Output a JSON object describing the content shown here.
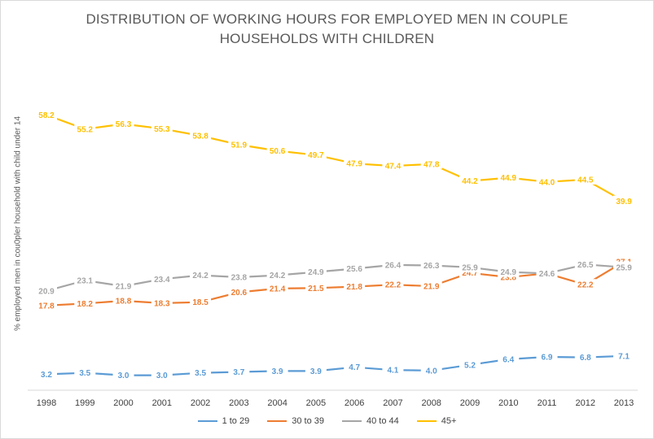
{
  "title": {
    "line1": "DISTRIBUTION OF WORKING HOURS FOR EMPLOYED MEN IN COUPLE",
    "line2": "HOUSEHOLDS WITH CHILDREN"
  },
  "chart_data": {
    "type": "line",
    "title": "DISTRIBUTION OF WORKING HOURS FOR EMPLOYED MEN IN COUPLE HOUSEHOLDS WITH CHILDREN",
    "xlabel": "",
    "ylabel": "% employed men in cou0pler household with child under 14",
    "ylim": [
      0,
      65
    ],
    "grid": false,
    "legend_position": "bottom",
    "categories": [
      "1998",
      "1999",
      "2000",
      "2001",
      "2002",
      "2003",
      "2004",
      "2005",
      "2006",
      "2007",
      "2008",
      "2009",
      "2010",
      "2011",
      "2012",
      "2013"
    ],
    "series": [
      {
        "name": "1 to 29",
        "color": "#5b9bd5",
        "values": [
          3.2,
          3.5,
          3.0,
          3.0,
          3.5,
          3.7,
          3.9,
          3.9,
          4.7,
          4.1,
          4.0,
          5.2,
          6.4,
          6.9,
          6.8,
          7.1
        ]
      },
      {
        "name": "30 to 39",
        "color": "#ed7d31",
        "values": [
          17.8,
          18.2,
          18.8,
          18.3,
          18.5,
          20.6,
          21.4,
          21.5,
          21.8,
          22.2,
          21.9,
          24.7,
          23.8,
          24.6,
          22.2,
          27.1
        ]
      },
      {
        "name": "40 to 44",
        "color": "#a5a5a5",
        "values": [
          20.9,
          23.1,
          21.9,
          23.4,
          24.2,
          23.8,
          24.2,
          24.9,
          25.6,
          26.4,
          26.3,
          25.9,
          24.9,
          24.6,
          26.5,
          25.9
        ]
      },
      {
        "name": "45+",
        "color": "#ffc000",
        "values": [
          58.2,
          55.2,
          56.3,
          55.3,
          53.8,
          51.9,
          50.6,
          49.7,
          47.9,
          47.4,
          47.8,
          44.2,
          44.9,
          44.0,
          44.5,
          39.9
        ]
      }
    ]
  }
}
